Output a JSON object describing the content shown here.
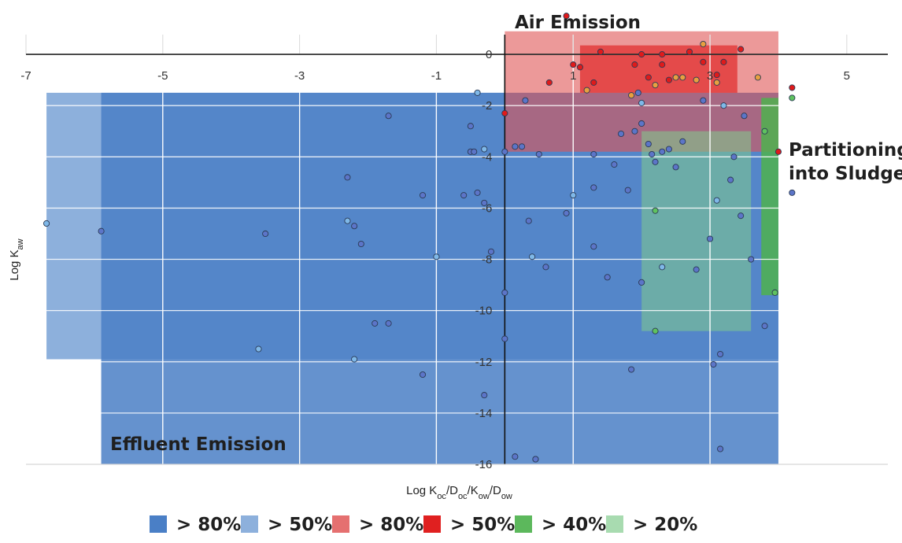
{
  "chart_data": {
    "type": "scatter",
    "title": "",
    "xlabel": {
      "main": "Log K",
      "parts": [
        [
          "oc",
          "/D"
        ],
        [
          "oc",
          "/K"
        ],
        [
          "ow",
          "/D"
        ],
        [
          "ow",
          ""
        ]
      ]
    },
    "ylabel": {
      "main": "Log K",
      "sub": "aw"
    },
    "xlim": [
      -7,
      5.6
    ],
    "ylim": [
      -16,
      1.2
    ],
    "x_ticks": [
      -7,
      -5,
      -3,
      -1,
      1,
      3,
      5
    ],
    "y_ticks": [
      0,
      -2,
      -4,
      -6,
      -8,
      -10,
      -12,
      -14,
      -16
    ],
    "grid": true,
    "region_labels": [
      {
        "id": "air",
        "lines": [
          "Air Emission"
        ]
      },
      {
        "id": "sludge",
        "lines": [
          "Partitioning",
          "into Sludge"
        ]
      },
      {
        "id": "effluent",
        "lines": [
          "Effluent Emission"
        ]
      }
    ],
    "regions": [
      {
        "id": "effluent-50",
        "x": [
          -6.7,
          4.0
        ],
        "y": [
          -11.9,
          -1.5
        ],
        "color": "#8DB0DC",
        "opacity": 1.0
      },
      {
        "id": "effluent-80",
        "x": [
          -5.9,
          4.0
        ],
        "y": [
          -16.0,
          -1.5
        ],
        "color": "#4A7FC6",
        "opacity": 0.85
      },
      {
        "id": "air-80",
        "x": [
          0.0,
          4.0
        ],
        "y": [
          -3.8,
          0.9
        ],
        "color": "#E05555",
        "opacity": 0.6
      },
      {
        "id": "air-50",
        "x": [
          1.1,
          3.4
        ],
        "y": [
          -1.5,
          0.35
        ],
        "color": "#E02020",
        "opacity": 0.65
      },
      {
        "id": "sludge-20",
        "x": [
          2.0,
          3.6
        ],
        "y": [
          -10.8,
          -3.0
        ],
        "color": "#7FCC8C",
        "opacity": 0.55
      },
      {
        "id": "sludge-40",
        "x": [
          3.75,
          4.0
        ],
        "y": [
          -9.4,
          -1.7
        ],
        "color": "#4FB24F",
        "opacity": 0.85
      }
    ],
    "series": [
      {
        "category": "effluent-80",
        "color": "#5C75C8",
        "points": [
          [
            -5.9,
            -6.9
          ],
          [
            -3.5,
            -7.0
          ],
          [
            -1.7,
            -2.4
          ],
          [
            -2.3,
            -4.8
          ],
          [
            -2.2,
            -6.7
          ],
          [
            -2.1,
            -7.4
          ],
          [
            -1.9,
            -10.5
          ],
          [
            -1.7,
            -10.5
          ],
          [
            -1.2,
            -5.5
          ],
          [
            -1.2,
            -12.5
          ],
          [
            -0.6,
            -5.5
          ],
          [
            -0.5,
            -3.8
          ],
          [
            -0.5,
            -2.8
          ],
          [
            -0.45,
            -3.8
          ],
          [
            -0.4,
            -5.4
          ],
          [
            -0.3,
            -13.3
          ],
          [
            -0.3,
            -5.8
          ],
          [
            -0.2,
            -7.7
          ],
          [
            0.0,
            -9.3
          ],
          [
            0.0,
            -11.1
          ],
          [
            0.0,
            -3.8
          ],
          [
            0.15,
            -3.6
          ],
          [
            0.15,
            -15.7
          ],
          [
            0.25,
            -3.6
          ],
          [
            0.3,
            -1.8
          ],
          [
            0.35,
            -6.5
          ],
          [
            0.45,
            -15.8
          ],
          [
            0.45,
            -15.8
          ],
          [
            0.5,
            -3.9
          ],
          [
            0.6,
            -8.3
          ],
          [
            0.9,
            -6.2
          ],
          [
            1.3,
            -3.9
          ],
          [
            1.3,
            -5.2
          ],
          [
            1.3,
            -7.5
          ],
          [
            1.5,
            -8.7
          ],
          [
            1.6,
            -4.3
          ],
          [
            1.7,
            -3.1
          ],
          [
            1.8,
            -5.3
          ],
          [
            1.85,
            -12.3
          ],
          [
            1.9,
            -3.0
          ],
          [
            1.95,
            -1.5
          ],
          [
            2.0,
            -2.7
          ],
          [
            2.0,
            -8.9
          ],
          [
            2.1,
            -3.5
          ],
          [
            2.15,
            -3.9
          ],
          [
            2.2,
            -4.2
          ],
          [
            2.3,
            -3.8
          ],
          [
            2.4,
            -3.7
          ],
          [
            2.5,
            -4.4
          ],
          [
            2.6,
            -3.4
          ],
          [
            2.8,
            -8.4
          ],
          [
            2.9,
            -1.8
          ],
          [
            3.0,
            -7.2
          ],
          [
            3.05,
            -12.1
          ],
          [
            3.15,
            -15.4
          ],
          [
            3.15,
            -11.7
          ],
          [
            3.3,
            -4.9
          ],
          [
            3.35,
            -4.0
          ],
          [
            3.45,
            -6.3
          ],
          [
            3.5,
            -2.4
          ],
          [
            3.6,
            -8.0
          ],
          [
            3.8,
            -10.6
          ],
          [
            4.2,
            -5.4
          ]
        ]
      },
      {
        "category": "effluent-50",
        "color": "#7FB8E8",
        "points": [
          [
            -6.7,
            -6.6
          ],
          [
            -3.6,
            -11.5
          ],
          [
            -2.3,
            -6.5
          ],
          [
            -2.2,
            -11.9
          ],
          [
            -1.0,
            -7.9
          ],
          [
            -0.4,
            -1.5
          ],
          [
            -0.3,
            -3.7
          ],
          [
            0.4,
            -7.9
          ],
          [
            1.0,
            -5.5
          ],
          [
            2.0,
            -1.9
          ],
          [
            2.3,
            -8.3
          ],
          [
            3.1,
            -5.7
          ],
          [
            3.2,
            -2.0
          ]
        ]
      },
      {
        "category": "air-50",
        "color": "#E01A1A",
        "points": [
          [
            0.0,
            -2.3
          ],
          [
            0.65,
            -1.1
          ],
          [
            0.9,
            1.5
          ],
          [
            1.0,
            -0.4
          ],
          [
            1.1,
            -0.5
          ],
          [
            1.3,
            -1.1
          ],
          [
            1.4,
            0.1
          ],
          [
            1.9,
            -0.4
          ],
          [
            2.0,
            0.0
          ],
          [
            2.1,
            -0.9
          ],
          [
            2.3,
            0.0
          ],
          [
            2.3,
            -0.4
          ],
          [
            2.4,
            -1.0
          ],
          [
            2.7,
            0.1
          ],
          [
            2.9,
            -0.3
          ],
          [
            3.1,
            -0.8
          ],
          [
            3.2,
            -0.3
          ],
          [
            3.45,
            0.2
          ],
          [
            4.2,
            -1.3
          ],
          [
            4.0,
            -3.8
          ]
        ]
      },
      {
        "category": "air-80",
        "color": "#E8A040",
        "points": [
          [
            1.2,
            -1.4
          ],
          [
            1.85,
            -1.6
          ],
          [
            2.2,
            -1.2
          ],
          [
            2.5,
            -0.9
          ],
          [
            2.6,
            -0.9
          ],
          [
            2.8,
            -1.0
          ],
          [
            2.9,
            0.4
          ],
          [
            3.1,
            -1.1
          ],
          [
            3.7,
            -0.9
          ]
        ]
      },
      {
        "category": "sludge-40",
        "color": "#5FC25F",
        "points": [
          [
            2.2,
            -6.1
          ],
          [
            2.2,
            -10.8
          ],
          [
            3.8,
            -3.0
          ],
          [
            3.95,
            -9.3
          ],
          [
            4.2,
            -1.7
          ]
        ]
      }
    ],
    "legend": {
      "placement": "bottom",
      "entries": [
        {
          "label": "> 80%",
          "color": "#4A7FC6"
        },
        {
          "label": "> 50%",
          "color": "#8DB0DC"
        },
        {
          "label": "> 80%",
          "color": "#E57070"
        },
        {
          "label": "> 50%",
          "color": "#E02020"
        },
        {
          "label": "> 40%",
          "color": "#5CB85C"
        },
        {
          "label": "> 20%",
          "color": "#A8DBB0"
        }
      ]
    }
  }
}
